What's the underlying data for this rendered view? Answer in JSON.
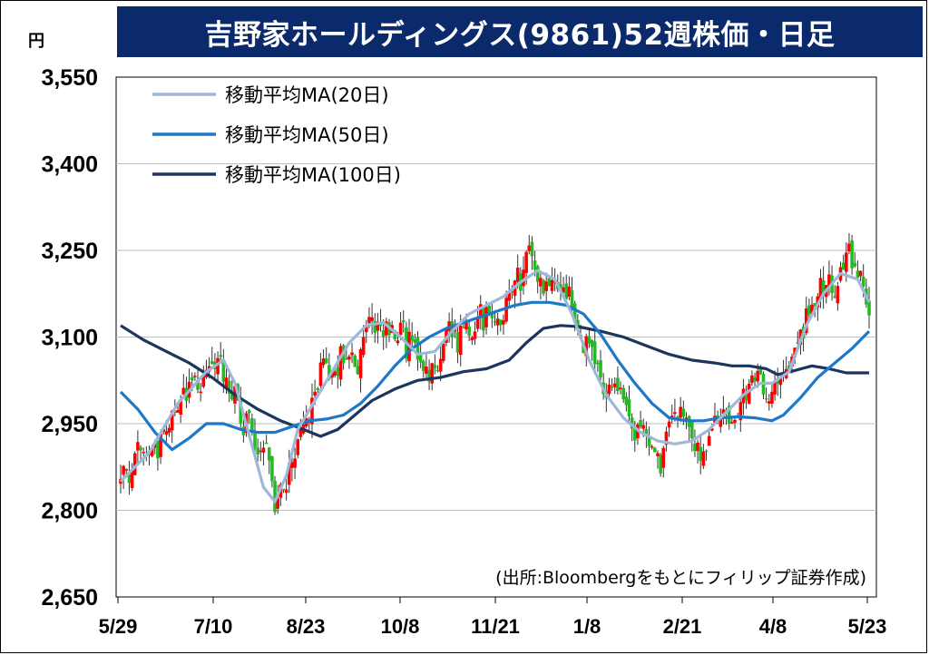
{
  "header": {
    "title": "吉野家ホールディングス(9861)52週株価・日足",
    "unit": "円"
  },
  "source": "(出所:Bloombergをもとにフィリップ証券作成)",
  "colors": {
    "title_bg": "#0a2a6b",
    "up": "#ff0000",
    "down": "#22bb22",
    "ma20": "#9fb7d8",
    "ma50": "#1e78c8",
    "ma100": "#1b355e"
  },
  "chart_data": {
    "type": "candlestick",
    "title": "吉野家ホールディングス(9861)52週株価・日足",
    "ylabel": "円",
    "ylim": [
      2650,
      3550
    ],
    "yticks": [
      "2,650",
      "2,800",
      "2,950",
      "3,100",
      "3,250",
      "3,400",
      "3,550"
    ],
    "ytick_values": [
      2650,
      2800,
      2950,
      3100,
      3250,
      3400,
      3550
    ],
    "xticks": [
      "5/29",
      "7/10",
      "8/23",
      "10/8",
      "11/21",
      "1/8",
      "2/21",
      "4/8",
      "5/23"
    ],
    "grid": true,
    "legend_placement": "top-left",
    "legend": [
      "移動平均MA(20日)",
      "移動平均MA(50日)",
      "移動平均MA(100日)"
    ],
    "ma20": [
      [
        0,
        2850
      ],
      [
        10,
        2900
      ],
      [
        20,
        2985
      ],
      [
        30,
        3040
      ],
      [
        36,
        3060
      ],
      [
        40,
        3020
      ],
      [
        45,
        2930
      ],
      [
        50,
        2840
      ],
      [
        54,
        2815
      ],
      [
        58,
        2860
      ],
      [
        62,
        2940
      ],
      [
        68,
        2990
      ],
      [
        74,
        3040
      ],
      [
        80,
        3090
      ],
      [
        86,
        3120
      ],
      [
        92,
        3125
      ],
      [
        98,
        3100
      ],
      [
        104,
        3070
      ],
      [
        110,
        3075
      ],
      [
        116,
        3110
      ],
      [
        122,
        3140
      ],
      [
        128,
        3155
      ],
      [
        134,
        3170
      ],
      [
        140,
        3195
      ],
      [
        146,
        3215
      ],
      [
        152,
        3200
      ],
      [
        158,
        3140
      ],
      [
        164,
        3060
      ],
      [
        170,
        3000
      ],
      [
        176,
        2960
      ],
      [
        182,
        2935
      ],
      [
        188,
        2920
      ],
      [
        194,
        2915
      ],
      [
        200,
        2920
      ],
      [
        206,
        2940
      ],
      [
        212,
        2970
      ],
      [
        218,
        3000
      ],
      [
        224,
        3020
      ],
      [
        228,
        3020
      ],
      [
        234,
        3040
      ],
      [
        240,
        3120
      ],
      [
        246,
        3175
      ],
      [
        252,
        3210
      ],
      [
        258,
        3200
      ],
      [
        262,
        3160
      ]
    ],
    "ma50": [
      [
        0,
        3005
      ],
      [
        6,
        2975
      ],
      [
        12,
        2935
      ],
      [
        18,
        2905
      ],
      [
        24,
        2925
      ],
      [
        30,
        2950
      ],
      [
        36,
        2950
      ],
      [
        42,
        2940
      ],
      [
        48,
        2935
      ],
      [
        54,
        2935
      ],
      [
        60,
        2945
      ],
      [
        66,
        2955
      ],
      [
        72,
        2958
      ],
      [
        78,
        2965
      ],
      [
        84,
        2985
      ],
      [
        90,
        3015
      ],
      [
        96,
        3050
      ],
      [
        102,
        3080
      ],
      [
        108,
        3100
      ],
      [
        114,
        3115
      ],
      [
        120,
        3125
      ],
      [
        126,
        3135
      ],
      [
        132,
        3145
      ],
      [
        138,
        3155
      ],
      [
        144,
        3160
      ],
      [
        150,
        3160
      ],
      [
        156,
        3155
      ],
      [
        162,
        3140
      ],
      [
        168,
        3105
      ],
      [
        174,
        3060
      ],
      [
        180,
        3020
      ],
      [
        186,
        2985
      ],
      [
        192,
        2960
      ],
      [
        198,
        2955
      ],
      [
        204,
        2955
      ],
      [
        210,
        2960
      ],
      [
        216,
        2962
      ],
      [
        222,
        2960
      ],
      [
        228,
        2955
      ],
      [
        232,
        2965
      ],
      [
        238,
        2995
      ],
      [
        244,
        3030
      ],
      [
        250,
        3055
      ],
      [
        256,
        3080
      ],
      [
        262,
        3110
      ]
    ],
    "ma100": [
      [
        0,
        3120
      ],
      [
        8,
        3095
      ],
      [
        16,
        3075
      ],
      [
        24,
        3055
      ],
      [
        32,
        3030
      ],
      [
        40,
        3000
      ],
      [
        48,
        2975
      ],
      [
        56,
        2955
      ],
      [
        64,
        2940
      ],
      [
        70,
        2928
      ],
      [
        76,
        2940
      ],
      [
        82,
        2965
      ],
      [
        88,
        2990
      ],
      [
        96,
        3010
      ],
      [
        104,
        3025
      ],
      [
        112,
        3030
      ],
      [
        120,
        3040
      ],
      [
        128,
        3045
      ],
      [
        136,
        3060
      ],
      [
        142,
        3090
      ],
      [
        148,
        3115
      ],
      [
        154,
        3120
      ],
      [
        160,
        3118
      ],
      [
        168,
        3110
      ],
      [
        176,
        3100
      ],
      [
        184,
        3085
      ],
      [
        192,
        3070
      ],
      [
        200,
        3060
      ],
      [
        208,
        3055
      ],
      [
        214,
        3050
      ],
      [
        220,
        3050
      ],
      [
        226,
        3045
      ],
      [
        230,
        3035
      ],
      [
        236,
        3042
      ],
      [
        242,
        3050
      ],
      [
        248,
        3045
      ],
      [
        254,
        3038
      ],
      [
        262,
        3038
      ]
    ]
  }
}
